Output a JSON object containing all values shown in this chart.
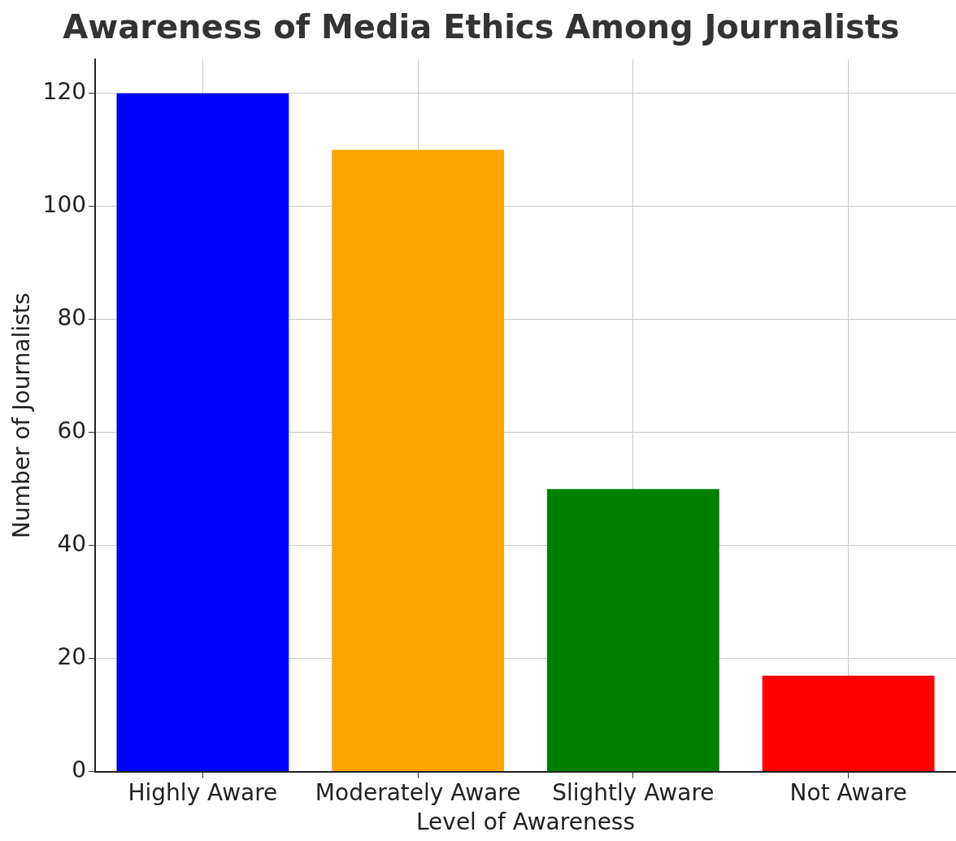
{
  "chart_data": {
    "type": "bar",
    "title": "Awareness of Media Ethics Among Journalists",
    "xlabel": "Level of Awareness",
    "ylabel": "Number of Journalists",
    "categories": [
      "Highly Aware",
      "Moderately Aware",
      "Slightly Aware",
      "Not Aware"
    ],
    "values": [
      120,
      110,
      50,
      17
    ],
    "colors": [
      "#0000ff",
      "#ffa500",
      "#008000",
      "#ff0000"
    ],
    "ylim": [
      0,
      126
    ],
    "yticks": [
      0,
      20,
      40,
      60,
      80,
      100,
      120
    ],
    "grid": true
  }
}
